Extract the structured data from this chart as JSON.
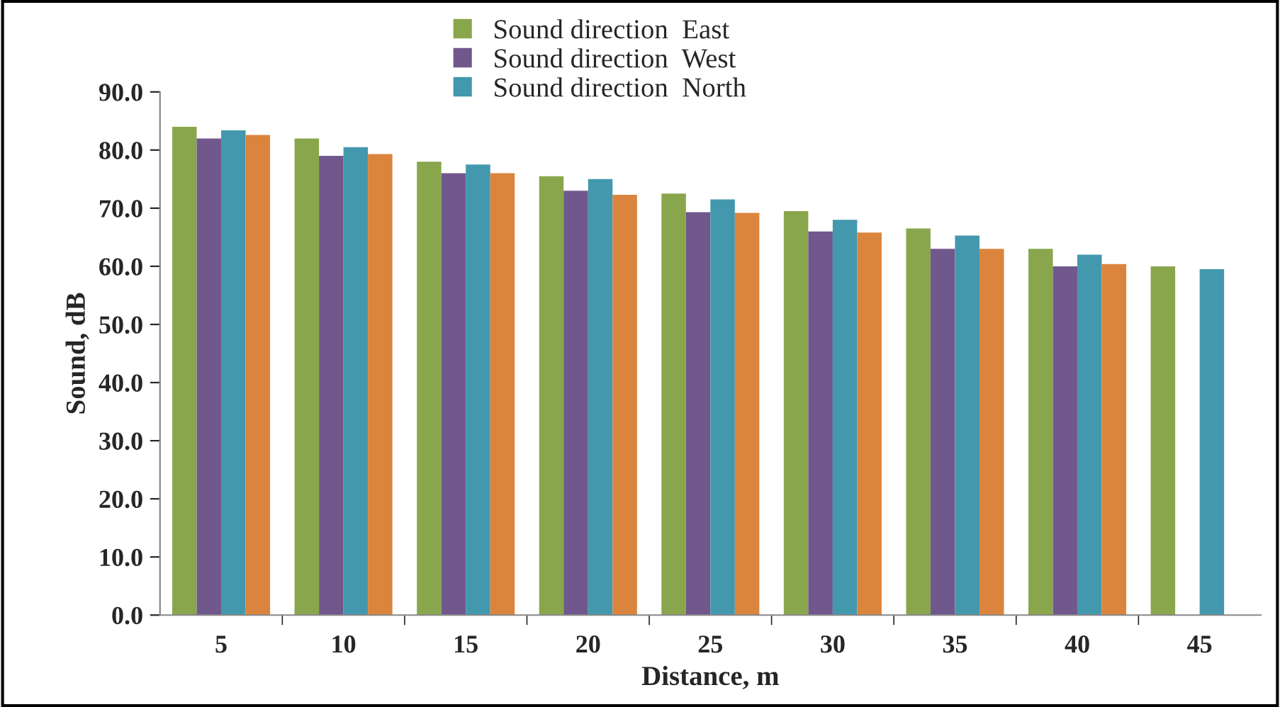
{
  "chart_data": {
    "type": "bar",
    "xlabel": "Distance, m",
    "ylabel": "Sound, dB",
    "categories": [
      "5",
      "10",
      "15",
      "20",
      "25",
      "30",
      "35",
      "40",
      "45"
    ],
    "series": [
      {
        "name": "Sound direction  East",
        "color": "#8aa64c",
        "values": [
          84,
          82,
          78,
          75.5,
          72.5,
          69.5,
          66.5,
          63,
          60
        ]
      },
      {
        "name": "Sound direction  West",
        "color": "#70588c",
        "values": [
          82,
          79,
          76,
          73,
          69.3,
          66,
          63,
          60,
          null
        ]
      },
      {
        "name": "Sound direction  North",
        "color": "#4398ae",
        "values": [
          83.4,
          80.5,
          77.5,
          75,
          71.5,
          68,
          65.3,
          62,
          59.5
        ]
      },
      {
        "color": "#db843d",
        "values": [
          82.6,
          79.3,
          76,
          72.3,
          69.2,
          65.8,
          63,
          60.4,
          null
        ]
      }
    ],
    "ylim": [
      0,
      90
    ],
    "yticks": [
      {
        "value": 0,
        "label": "0.0"
      },
      {
        "value": 10,
        "label": "10.0"
      },
      {
        "value": 20,
        "label": "20.0"
      },
      {
        "value": 30,
        "label": "30.0"
      },
      {
        "value": 40,
        "label": "40.0"
      },
      {
        "value": 50,
        "label": "50.0"
      },
      {
        "value": 60,
        "label": "60.0"
      },
      {
        "value": 70,
        "label": "70.0"
      },
      {
        "value": 80,
        "label": "80.0"
      },
      {
        "value": 90,
        "label": "90.0"
      }
    ],
    "grid": false,
    "legend": "top"
  }
}
